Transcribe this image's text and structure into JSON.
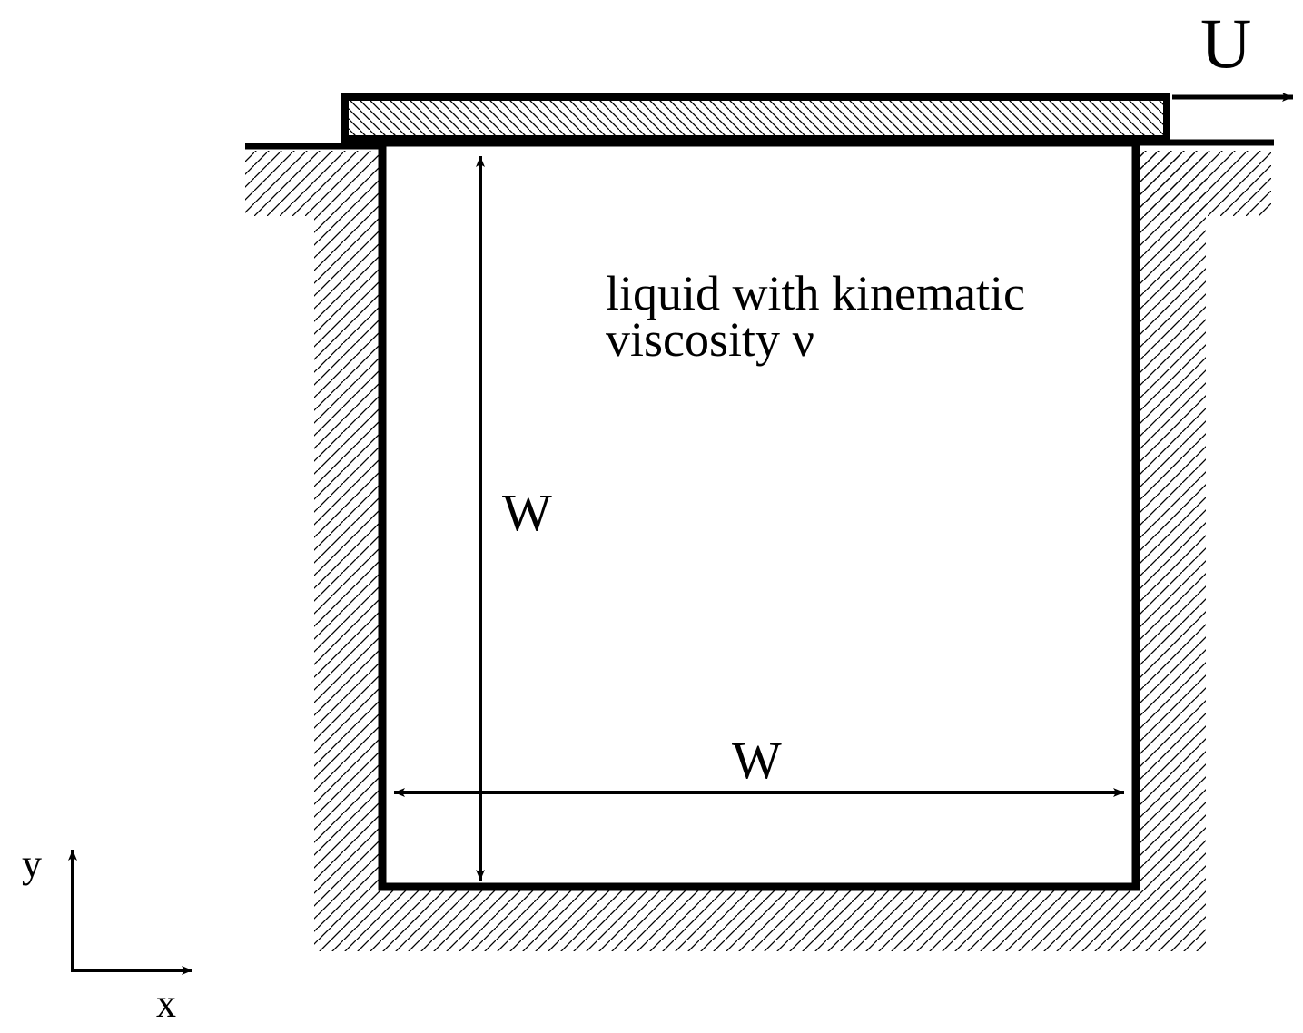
{
  "labels": {
    "lid_velocity": "U",
    "liquid_line1": "liquid with kinematic",
    "liquid_line2": "viscosity ν",
    "height": "W",
    "width": "W",
    "axis_y": "y",
    "axis_x": "x"
  },
  "colors": {
    "ink": "#000000",
    "background": "#ffffff"
  }
}
